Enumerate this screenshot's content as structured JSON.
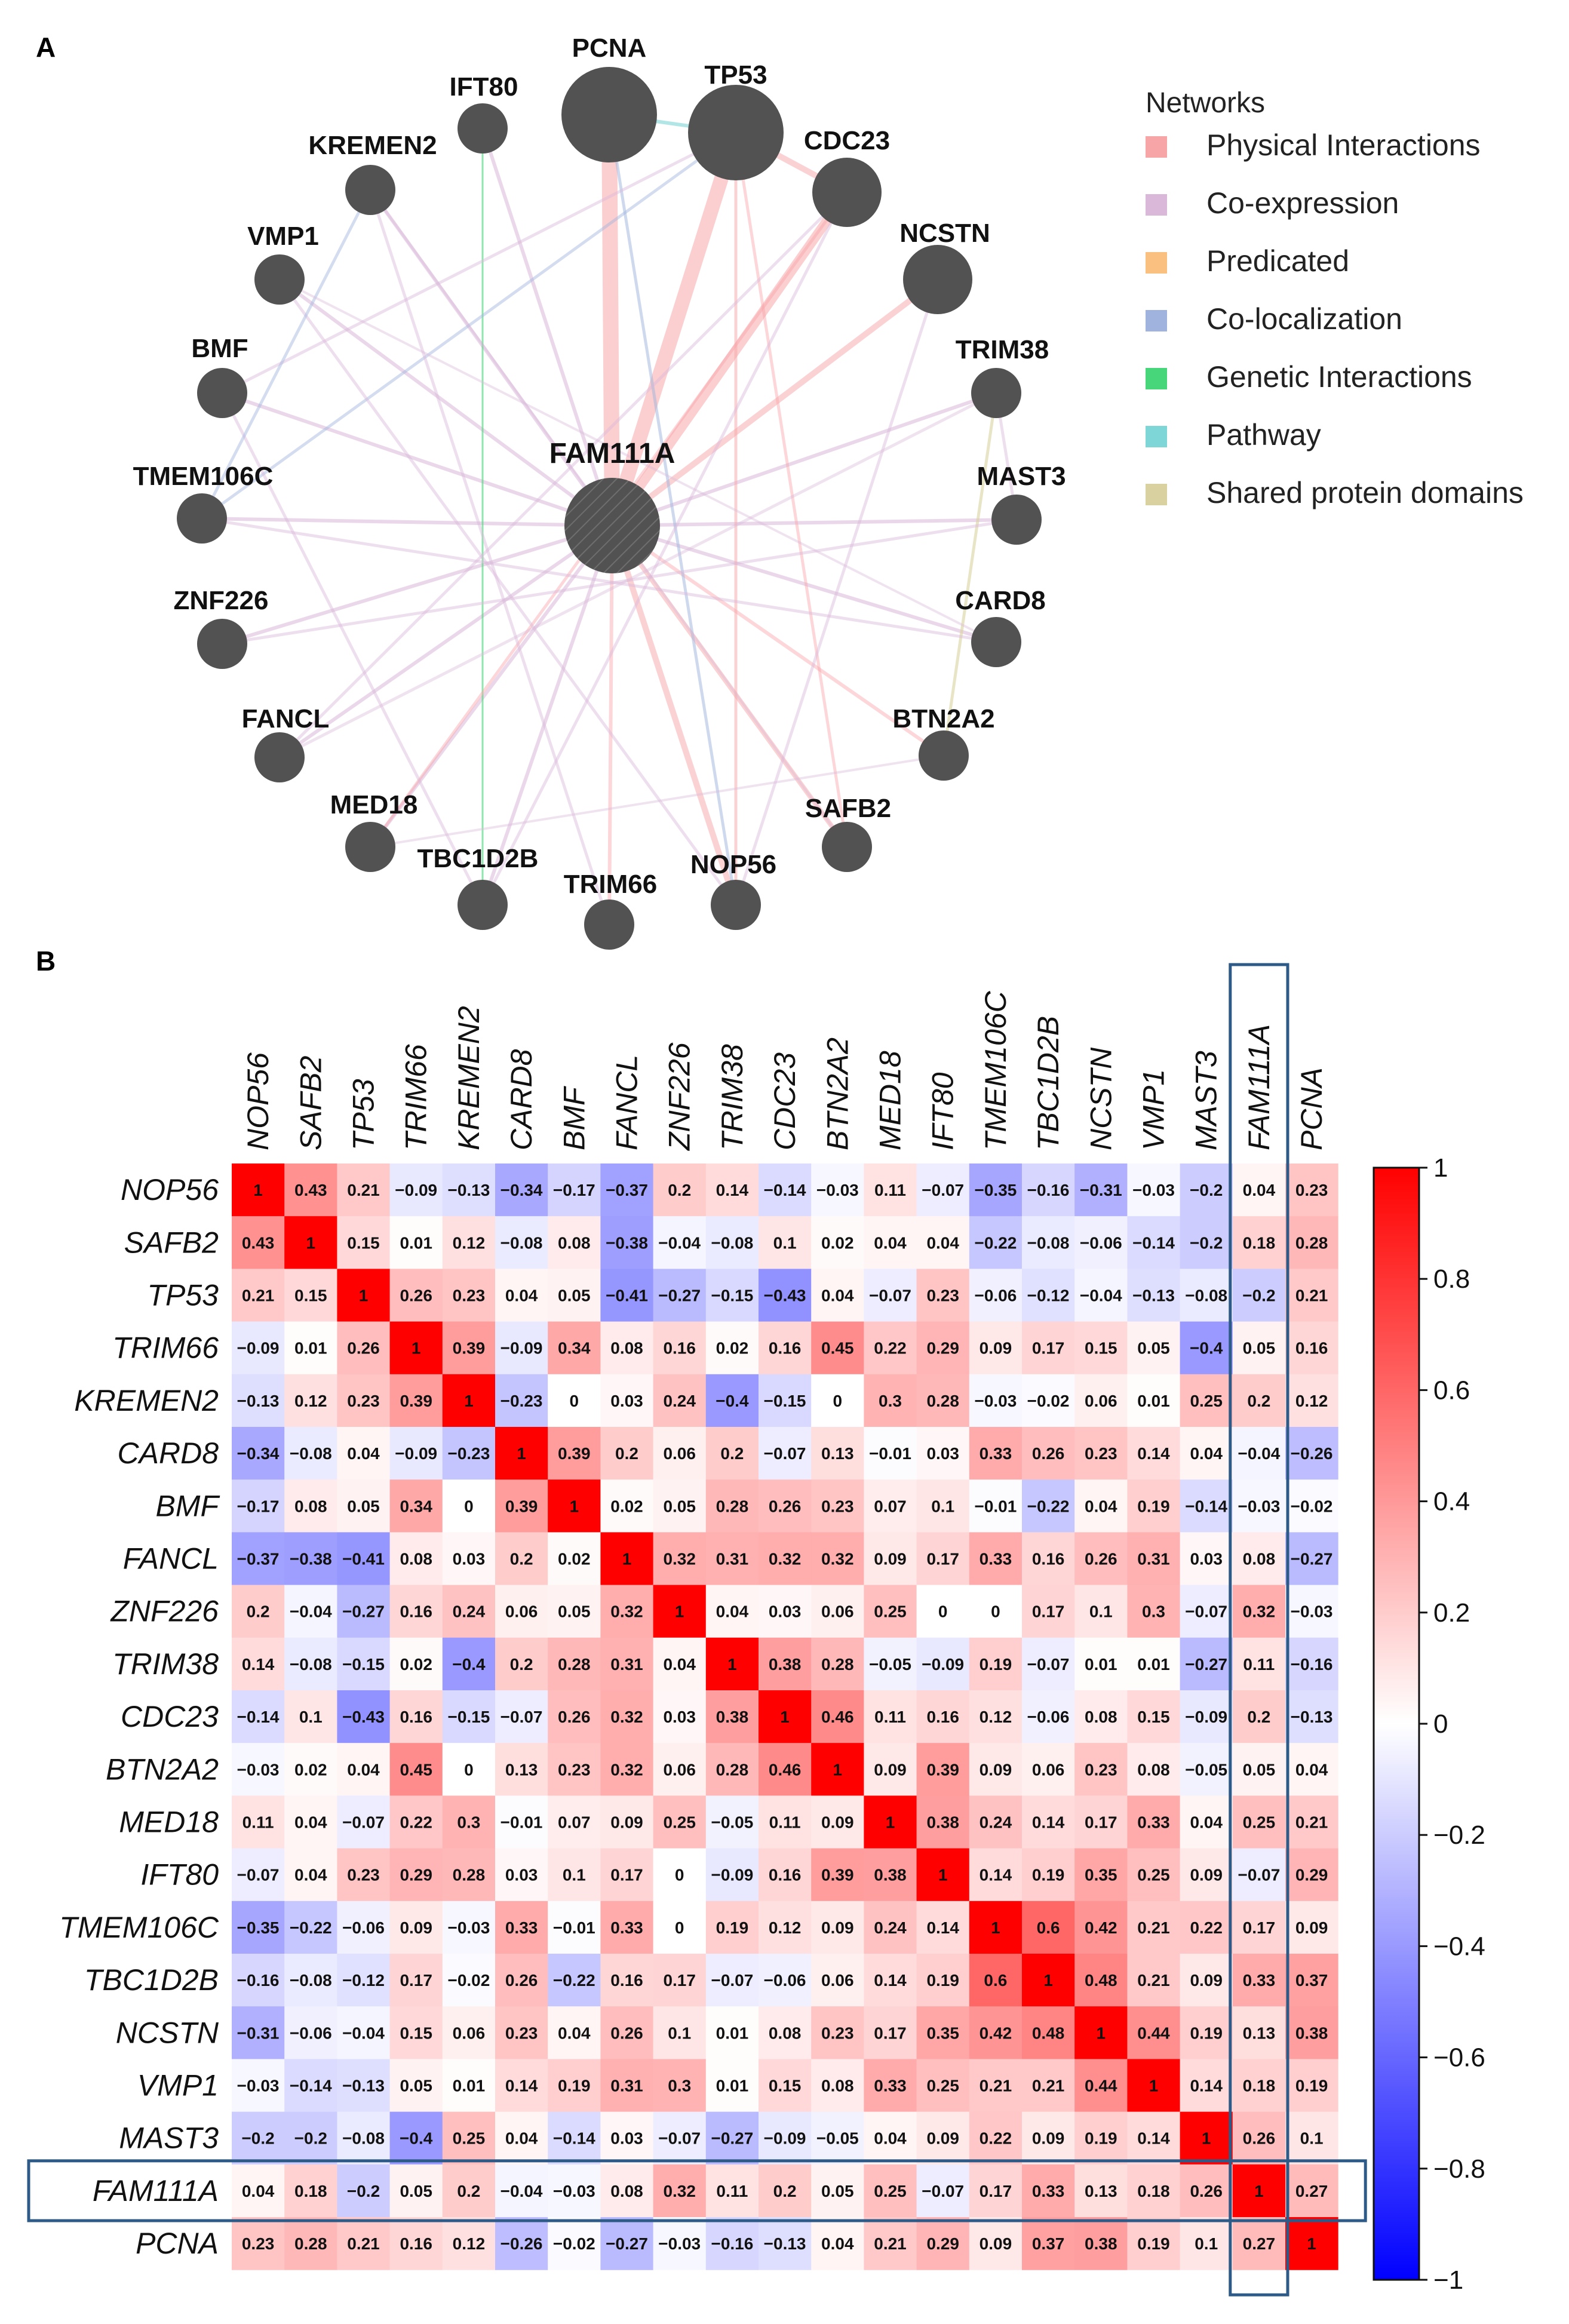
{
  "panel_a": {
    "letter": "A",
    "center_node": "FAM111A",
    "nodes": [
      {
        "label": "PCNA",
        "size": "large"
      },
      {
        "label": "TP53",
        "size": "large"
      },
      {
        "label": "CDC23",
        "size": "medium"
      },
      {
        "label": "NCSTN",
        "size": "medium"
      },
      {
        "label": "TRIM38",
        "size": "small"
      },
      {
        "label": "MAST3",
        "size": "small"
      },
      {
        "label": "CARD8",
        "size": "small"
      },
      {
        "label": "BTN2A2",
        "size": "small"
      },
      {
        "label": "SAFB2",
        "size": "small"
      },
      {
        "label": "NOP56",
        "size": "small"
      },
      {
        "label": "TRIM66",
        "size": "small"
      },
      {
        "label": "TBC1D2B",
        "size": "small"
      },
      {
        "label": "MED18",
        "size": "small"
      },
      {
        "label": "FANCL",
        "size": "small"
      },
      {
        "label": "ZNF226",
        "size": "small"
      },
      {
        "label": "TMEM106C",
        "size": "small"
      },
      {
        "label": "BMF",
        "size": "small"
      },
      {
        "label": "VMP1",
        "size": "small"
      },
      {
        "label": "KREMEN2",
        "size": "small"
      },
      {
        "label": "IFT80",
        "size": "small"
      }
    ],
    "legend": {
      "title": "Networks",
      "items": [
        {
          "label": "Physical Interactions",
          "color": "#f8a5a8"
        },
        {
          "label": "Co-expression",
          "color": "#d9b8d9"
        },
        {
          "label": "Predicated",
          "color": "#f9c07f"
        },
        {
          "label": "Co-localization",
          "color": "#9fb3de"
        },
        {
          "label": "Genetic Interactions",
          "color": "#48d67a"
        },
        {
          "label": "Pathway",
          "color": "#7ed6d6"
        },
        {
          "label": "Shared protein domains",
          "color": "#d9d2a0"
        }
      ]
    },
    "node_color": "#525252"
  },
  "panel_b": {
    "letter": "B"
  },
  "chart_data": {
    "type": "heatmap",
    "title": "",
    "genes": [
      "NOP56",
      "SAFB2",
      "TP53",
      "TRIM66",
      "KREMEN2",
      "CARD8",
      "BMF",
      "FANCL",
      "ZNF226",
      "TRIM38",
      "CDC23",
      "BTN2A2",
      "MED18",
      "IFT80",
      "TMEM106C",
      "TBC1D2B",
      "NCSTN",
      "VMP1",
      "MAST3",
      "FAM111A",
      "PCNA"
    ],
    "matrix": [
      [
        1,
        0.43,
        0.21,
        -0.09,
        -0.13,
        -0.34,
        -0.17,
        -0.37,
        0.2,
        0.14,
        -0.14,
        -0.03,
        0.11,
        -0.07,
        -0.35,
        -0.16,
        -0.31,
        -0.03,
        -0.2,
        0.04,
        0.23
      ],
      [
        0.43,
        1,
        0.15,
        0.01,
        0.12,
        -0.08,
        0.08,
        -0.38,
        -0.04,
        -0.08,
        0.1,
        0.02,
        0.04,
        0.04,
        -0.22,
        -0.08,
        -0.06,
        -0.14,
        -0.2,
        0.18,
        0.28
      ],
      [
        0.21,
        0.15,
        1,
        0.26,
        0.23,
        0.04,
        0.05,
        -0.41,
        -0.27,
        -0.15,
        -0.43,
        0.04,
        -0.07,
        0.23,
        -0.06,
        -0.12,
        -0.04,
        -0.13,
        -0.08,
        -0.2,
        0.21
      ],
      [
        -0.09,
        0.01,
        0.26,
        1,
        0.39,
        -0.09,
        0.34,
        0.08,
        0.16,
        0.02,
        0.16,
        0.45,
        0.22,
        0.29,
        0.09,
        0.17,
        0.15,
        0.05,
        -0.4,
        0.05,
        0.16
      ],
      [
        -0.13,
        0.12,
        0.23,
        0.39,
        1,
        -0.23,
        0,
        0.03,
        0.24,
        -0.4,
        -0.15,
        0,
        0.3,
        0.28,
        -0.03,
        -0.02,
        0.06,
        0.01,
        0.25,
        0.2,
        0.12
      ],
      [
        -0.34,
        -0.08,
        0.04,
        -0.09,
        -0.23,
        1,
        0.39,
        0.2,
        0.06,
        0.2,
        -0.07,
        0.13,
        -0.01,
        0.03,
        0.33,
        0.26,
        0.23,
        0.14,
        0.04,
        -0.04,
        -0.26
      ],
      [
        -0.17,
        0.08,
        0.05,
        0.34,
        0,
        0.39,
        1,
        0.02,
        0.05,
        0.28,
        0.26,
        0.23,
        0.07,
        0.1,
        -0.01,
        -0.22,
        0.04,
        0.19,
        -0.14,
        -0.03,
        -0.02
      ],
      [
        -0.37,
        -0.38,
        -0.41,
        0.08,
        0.03,
        0.2,
        0.02,
        1,
        0.32,
        0.31,
        0.32,
        0.32,
        0.09,
        0.17,
        0.33,
        0.16,
        0.26,
        0.31,
        0.03,
        0.08,
        -0.27
      ],
      [
        0.2,
        -0.04,
        -0.27,
        0.16,
        0.24,
        0.06,
        0.05,
        0.32,
        1,
        0.04,
        0.03,
        0.06,
        0.25,
        0,
        0,
        0.17,
        0.1,
        0.3,
        -0.07,
        0.32,
        -0.03
      ],
      [
        0.14,
        -0.08,
        -0.15,
        0.02,
        -0.4,
        0.2,
        0.28,
        0.31,
        0.04,
        1,
        0.38,
        0.28,
        -0.05,
        -0.09,
        0.19,
        -0.07,
        0.01,
        0.01,
        -0.27,
        0.11,
        -0.16
      ],
      [
        -0.14,
        0.1,
        -0.43,
        0.16,
        -0.15,
        -0.07,
        0.26,
        0.32,
        0.03,
        0.38,
        1,
        0.46,
        0.11,
        0.16,
        0.12,
        -0.06,
        0.08,
        0.15,
        -0.09,
        0.2,
        -0.13
      ],
      [
        -0.03,
        0.02,
        0.04,
        0.45,
        0,
        0.13,
        0.23,
        0.32,
        0.06,
        0.28,
        0.46,
        1,
        0.09,
        0.39,
        0.09,
        0.06,
        0.23,
        0.08,
        -0.05,
        0.05,
        0.04
      ],
      [
        0.11,
        0.04,
        -0.07,
        0.22,
        0.3,
        -0.01,
        0.07,
        0.09,
        0.25,
        -0.05,
        0.11,
        0.09,
        1,
        0.38,
        0.24,
        0.14,
        0.17,
        0.33,
        0.04,
        0.25,
        0.21
      ],
      [
        -0.07,
        0.04,
        0.23,
        0.29,
        0.28,
        0.03,
        0.1,
        0.17,
        0,
        -0.09,
        0.16,
        0.39,
        0.38,
        1,
        0.14,
        0.19,
        0.35,
        0.25,
        0.09,
        -0.07,
        0.29
      ],
      [
        -0.35,
        -0.22,
        -0.06,
        0.09,
        -0.03,
        0.33,
        -0.01,
        0.33,
        0,
        0.19,
        0.12,
        0.09,
        0.24,
        0.14,
        1,
        0.6,
        0.42,
        0.21,
        0.22,
        0.17,
        0.09
      ],
      [
        -0.16,
        -0.08,
        -0.12,
        0.17,
        -0.02,
        0.26,
        -0.22,
        0.16,
        0.17,
        -0.07,
        -0.06,
        0.06,
        0.14,
        0.19,
        0.6,
        1,
        0.48,
        0.21,
        0.09,
        0.33,
        0.37
      ],
      [
        -0.31,
        -0.06,
        -0.04,
        0.15,
        0.06,
        0.23,
        0.04,
        0.26,
        0.1,
        0.01,
        0.08,
        0.23,
        0.17,
        0.35,
        0.42,
        0.48,
        1,
        0.44,
        0.19,
        0.13,
        0.38
      ],
      [
        -0.03,
        -0.14,
        -0.13,
        0.05,
        0.01,
        0.14,
        0.19,
        0.31,
        0.3,
        0.01,
        0.15,
        0.08,
        0.33,
        0.25,
        0.21,
        0.21,
        0.44,
        1,
        0.14,
        0.18,
        0.19
      ],
      [
        -0.2,
        -0.2,
        -0.08,
        -0.4,
        0.25,
        0.04,
        -0.14,
        0.03,
        -0.07,
        -0.27,
        -0.09,
        -0.05,
        0.04,
        0.09,
        0.22,
        0.09,
        0.19,
        0.14,
        1,
        0.26,
        0.1
      ],
      [
        0.04,
        0.18,
        -0.2,
        0.05,
        0.2,
        -0.04,
        -0.03,
        0.08,
        0.32,
        0.11,
        0.2,
        0.05,
        0.25,
        -0.07,
        0.17,
        0.33,
        0.13,
        0.18,
        0.26,
        1,
        0.27
      ],
      [
        0.23,
        0.28,
        0.21,
        0.16,
        0.12,
        -0.26,
        -0.02,
        -0.27,
        -0.03,
        -0.16,
        -0.13,
        0.04,
        0.21,
        0.29,
        0.09,
        0.37,
        0.38,
        0.19,
        0.1,
        0.27,
        1
      ]
    ],
    "highlighted_gene": "FAM111A",
    "highlight_color": "#2e5a87",
    "colorbar": {
      "min": -1,
      "max": 1,
      "ticks": [
        "1",
        "0.8",
        "0.6",
        "0.4",
        "0.2",
        "0",
        "−0.2",
        "−0.4",
        "−0.6",
        "−0.8",
        "−1"
      ],
      "low_color": "#0000ff",
      "mid_color": "#ffffff",
      "high_color": "#ff0000"
    }
  }
}
